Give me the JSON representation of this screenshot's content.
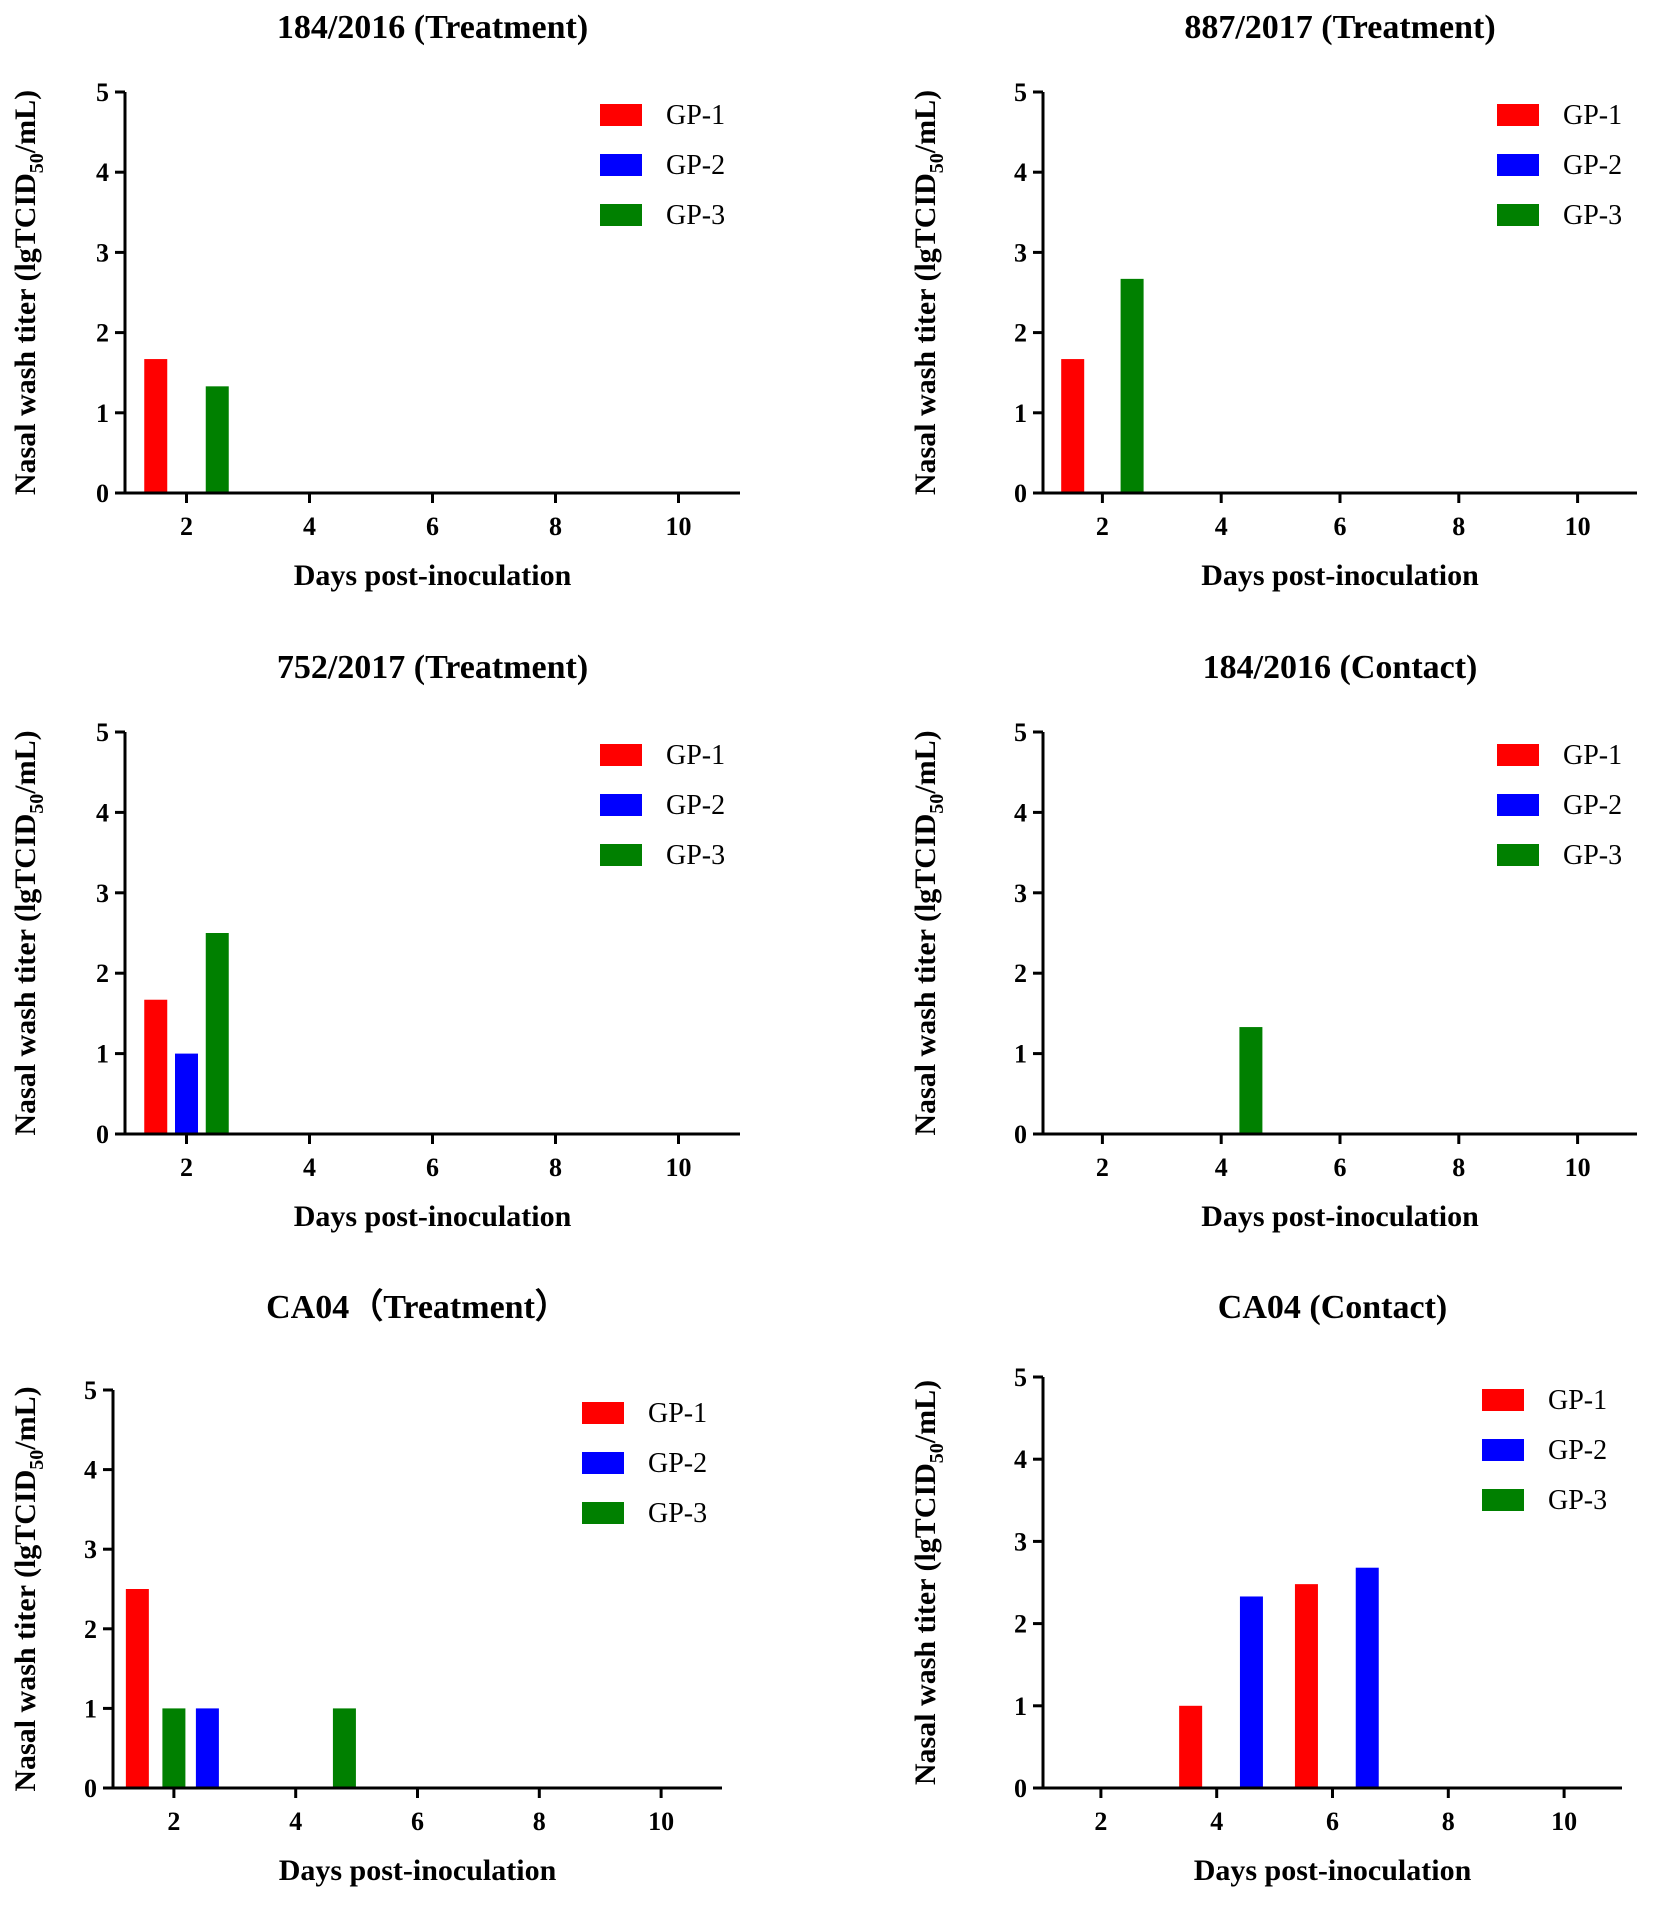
{
  "figure": {
    "y_unit_label": "Nasal wash titer (lgTCID",
    "y_unit_sub": "50",
    "y_unit_tail": "/mL)",
    "x_axis_label": "Days post-inoculation"
  },
  "colors": {
    "GP-1": "#ff0000",
    "GP-2": "#0000ff",
    "GP-3": "#008000"
  },
  "chart_data": [
    {
      "type": "bar",
      "title": "184/2016 (Treatment)",
      "xlabel": "Days post-inoculation",
      "ylabel": "Nasal wash titer (lgTCID50/mL)",
      "xlim": [
        1,
        11
      ],
      "ylim": [
        0,
        5
      ],
      "xticks": [
        "2",
        "4",
        "6",
        "8",
        "10"
      ],
      "yticks": [
        "0",
        "1",
        "2",
        "3",
        "4",
        "5"
      ],
      "legend": [
        "GP-1",
        "GP-2",
        "GP-3"
      ],
      "legend_position": "top-right",
      "bars": [
        {
          "series": "GP-1",
          "day": 1.5,
          "value": 1.67
        },
        {
          "series": "GP-3",
          "day": 2.5,
          "value": 1.33
        }
      ]
    },
    {
      "type": "bar",
      "title": "887/2017 (Treatment)",
      "xlabel": "Days post-inoculation",
      "ylabel": "Nasal wash titer (lgTCID50/mL)",
      "xlim": [
        1,
        11
      ],
      "ylim": [
        0,
        5
      ],
      "xticks": [
        "2",
        "4",
        "6",
        "8",
        "10"
      ],
      "yticks": [
        "0",
        "1",
        "2",
        "3",
        "4",
        "5"
      ],
      "legend": [
        "GP-1",
        "GP-2",
        "GP-3"
      ],
      "legend_position": "top-right",
      "bars": [
        {
          "series": "GP-1",
          "day": 1.5,
          "value": 1.67
        },
        {
          "series": "GP-3",
          "day": 2.5,
          "value": 2.67
        }
      ]
    },
    {
      "type": "bar",
      "title": "752/2017 (Treatment)",
      "xlabel": "Days post-inoculation",
      "ylabel": "Nasal wash titer (lgTCID50/mL)",
      "xlim": [
        1,
        11
      ],
      "ylim": [
        0,
        5
      ],
      "xticks": [
        "2",
        "4",
        "6",
        "8",
        "10"
      ],
      "yticks": [
        "0",
        "1",
        "2",
        "3",
        "4",
        "5"
      ],
      "legend": [
        "GP-1",
        "GP-2",
        "GP-3"
      ],
      "legend_position": "top-right",
      "bars": [
        {
          "series": "GP-1",
          "day": 1.5,
          "value": 1.67
        },
        {
          "series": "GP-2",
          "day": 2.0,
          "value": 1.0
        },
        {
          "series": "GP-3",
          "day": 2.5,
          "value": 2.5
        }
      ]
    },
    {
      "type": "bar",
      "title": "184/2016 (Contact)",
      "xlabel": "Days post-inoculation",
      "ylabel": "Nasal wash titer (lgTCID50/mL)",
      "xlim": [
        1,
        11
      ],
      "ylim": [
        0,
        5
      ],
      "xticks": [
        "2",
        "4",
        "6",
        "8",
        "10"
      ],
      "yticks": [
        "0",
        "1",
        "2",
        "3",
        "4",
        "5"
      ],
      "legend": [
        "GP-1",
        "GP-2",
        "GP-3"
      ],
      "legend_position": "top-right",
      "bars": [
        {
          "series": "GP-3",
          "day": 4.5,
          "value": 1.33
        }
      ]
    },
    {
      "type": "bar",
      "title": "CA04（Treatment）",
      "xlabel": "Days post-inoculation",
      "ylabel": "Nasal wash titer (lgTCID50/mL)",
      "xlim": [
        1,
        11
      ],
      "ylim": [
        0,
        5
      ],
      "xticks": [
        "2",
        "4",
        "6",
        "8",
        "10"
      ],
      "yticks": [
        "0",
        "1",
        "2",
        "3",
        "4",
        "5"
      ],
      "legend": [
        "GP-1",
        "GP-2",
        "GP-3"
      ],
      "legend_position": "top-right",
      "bars": [
        {
          "series": "GP-1",
          "day": 1.4,
          "value": 2.5
        },
        {
          "series": "GP-3",
          "day": 2.0,
          "value": 1.0
        },
        {
          "series": "GP-2",
          "day": 2.55,
          "value": 1.0
        },
        {
          "series": "GP-3",
          "day": 4.8,
          "value": 1.0
        }
      ]
    },
    {
      "type": "bar",
      "title": "CA04 (Contact)",
      "xlabel": "Days post-inoculation",
      "ylabel": "Nasal wash titer (lgTCID50/mL)",
      "xlim": [
        1,
        11
      ],
      "ylim": [
        0,
        5
      ],
      "xticks": [
        "2",
        "4",
        "6",
        "8",
        "10"
      ],
      "yticks": [
        "0",
        "1",
        "2",
        "3",
        "4",
        "5"
      ],
      "legend": [
        "GP-1",
        "GP-2",
        "GP-3"
      ],
      "legend_position": "top-right",
      "bars": [
        {
          "series": "GP-1",
          "day": 3.55,
          "value": 1.0
        },
        {
          "series": "GP-2",
          "day": 4.6,
          "value": 2.33
        },
        {
          "series": "GP-1",
          "day": 5.55,
          "value": 2.48
        },
        {
          "series": "GP-2",
          "day": 6.6,
          "value": 2.68
        }
      ]
    }
  ]
}
